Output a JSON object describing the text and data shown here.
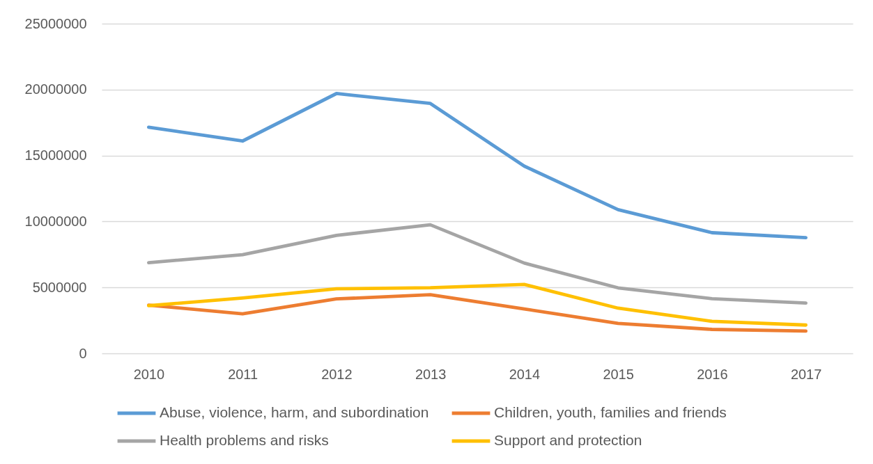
{
  "chart_data": {
    "type": "line",
    "categories": [
      "2010",
      "2011",
      "2012",
      "2013",
      "2014",
      "2015",
      "2016",
      "2017"
    ],
    "series": [
      {
        "name": "Abuse, violence, harm, and subordination",
        "color": "#5b9bd5",
        "values": [
          17150000,
          16100000,
          19700000,
          18950000,
          14200000,
          10900000,
          9150000,
          8780000
        ]
      },
      {
        "name": "Children, youth, families and friends",
        "color": "#ed7d31",
        "values": [
          3660000,
          3000000,
          4130000,
          4450000,
          3370000,
          2280000,
          1820000,
          1690000
        ]
      },
      {
        "name": "Health problems and risks",
        "color": "#a5a5a5",
        "values": [
          6880000,
          7480000,
          8950000,
          9750000,
          6850000,
          4970000,
          4150000,
          3820000
        ]
      },
      {
        "name": "Support and protection",
        "color": "#ffc000",
        "values": [
          3620000,
          4200000,
          4900000,
          4980000,
          5230000,
          3430000,
          2430000,
          2150000
        ]
      }
    ],
    "ylim": [
      0,
      25000000
    ],
    "yticks": [
      0,
      5000000,
      10000000,
      15000000,
      20000000,
      25000000
    ],
    "grid": "y",
    "legend": "bottom",
    "line_style": "solid"
  }
}
